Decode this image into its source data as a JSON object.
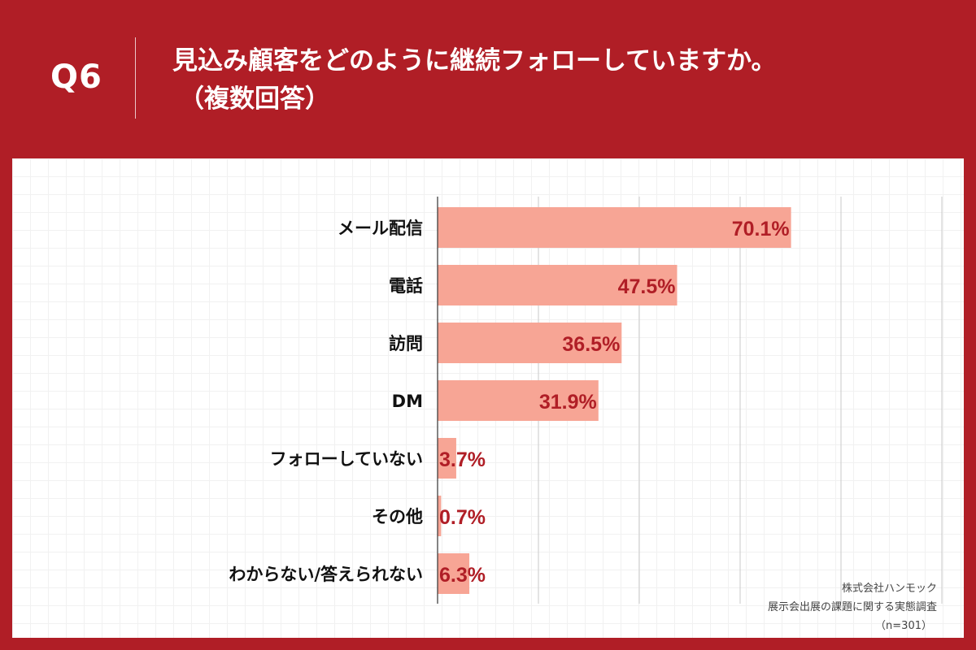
{
  "header": {
    "q_label": "Q6",
    "title_line1": "見込み顧客をどのように継続フォローしていますか。",
    "title_line2": "（複数回答）"
  },
  "footnote": {
    "company": "株式会社ハンモック",
    "survey": "展示会出展の課題に関する実態調査",
    "sample": "（n=301）"
  },
  "colors": {
    "background": "#b01e26",
    "bar": "#f7a595",
    "value_label": "#b01e26",
    "category_label": "#111111"
  },
  "chart_data": {
    "type": "bar",
    "orientation": "horizontal",
    "categories": [
      "メール配信",
      "電話",
      "訪問",
      "DM",
      "フォローしていない",
      "その他",
      "わからない/答えられない"
    ],
    "values": [
      70.1,
      47.5,
      36.5,
      31.9,
      3.7,
      0.7,
      6.3
    ],
    "value_labels": [
      "70.1%",
      "47.5%",
      "36.5%",
      "31.9%",
      "3.7%",
      "0.7%",
      "6.3%"
    ],
    "xlim": [
      0,
      100
    ],
    "grid": true,
    "title": "見込み顧客をどのように継続フォローしていますか。（複数回答）"
  }
}
